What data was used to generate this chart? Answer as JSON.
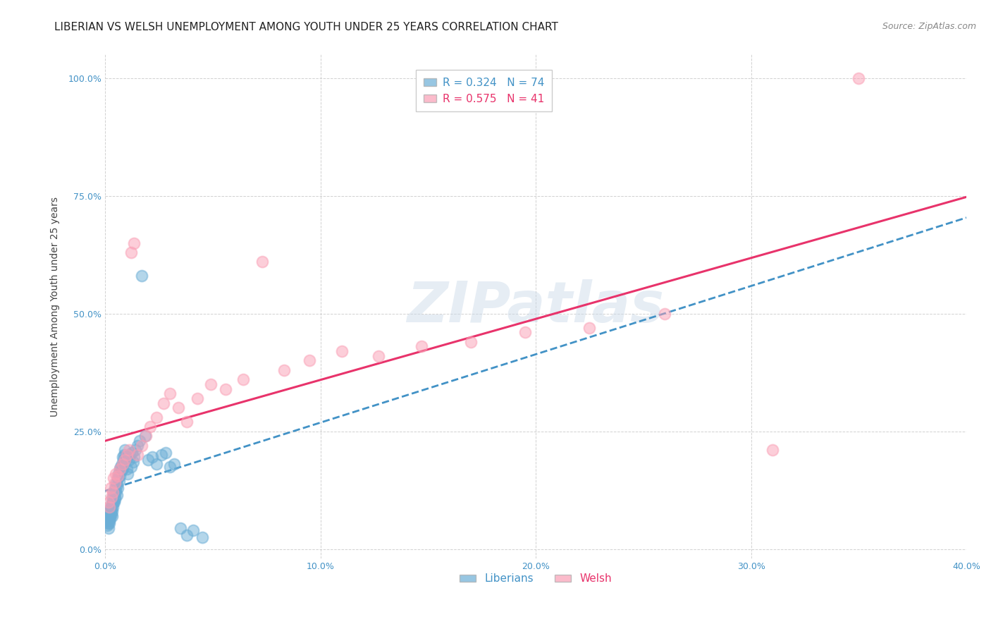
{
  "title": "LIBERIAN VS WELSH UNEMPLOYMENT AMONG YOUTH UNDER 25 YEARS CORRELATION CHART",
  "source": "Source: ZipAtlas.com",
  "ylabel": "Unemployment Among Youth under 25 years",
  "xlabel_ticks": [
    "0.0%",
    "10.0%",
    "20.0%",
    "30.0%",
    "40.0%"
  ],
  "ylabel_ticks": [
    "0.0%",
    "25.0%",
    "50.0%",
    "75.0%",
    "100.0%"
  ],
  "xlim": [
    0.0,
    0.4
  ],
  "ylim": [
    -0.02,
    1.05
  ],
  "liberian_color": "#6baed6",
  "welsh_color": "#fa9fb5",
  "liberian_line_color": "#4292c6",
  "welsh_line_color": "#e8336b",
  "liberian_label": "Liberians",
  "welsh_label": "Welsh",
  "liberian_R": 0.324,
  "liberian_N": 74,
  "welsh_R": 0.575,
  "welsh_N": 41,
  "liberian_x": [
    0.001,
    0.0012,
    0.0014,
    0.0015,
    0.0016,
    0.0017,
    0.0018,
    0.0019,
    0.002,
    0.0021,
    0.0022,
    0.0023,
    0.0024,
    0.0025,
    0.0026,
    0.0028,
    0.003,
    0.0031,
    0.0032,
    0.0033,
    0.0034,
    0.0035,
    0.0036,
    0.0038,
    0.004,
    0.0042,
    0.0044,
    0.0045,
    0.0046,
    0.0048,
    0.005,
    0.0052,
    0.0054,
    0.0056,
    0.0058,
    0.006,
    0.0062,
    0.0065,
    0.0068,
    0.007,
    0.0073,
    0.0075,
    0.0078,
    0.008,
    0.0082,
    0.0085,
    0.0088,
    0.009,
    0.0093,
    0.0095,
    0.01,
    0.0105,
    0.011,
    0.0115,
    0.012,
    0.0125,
    0.013,
    0.0135,
    0.014,
    0.015,
    0.016,
    0.017,
    0.0185,
    0.02,
    0.022,
    0.024,
    0.026,
    0.028,
    0.03,
    0.032,
    0.035,
    0.038,
    0.041,
    0.045
  ],
  "liberian_y": [
    0.05,
    0.06,
    0.055,
    0.07,
    0.045,
    0.065,
    0.055,
    0.08,
    0.06,
    0.075,
    0.07,
    0.085,
    0.065,
    0.08,
    0.09,
    0.075,
    0.085,
    0.1,
    0.07,
    0.095,
    0.08,
    0.11,
    0.09,
    0.1,
    0.12,
    0.1,
    0.11,
    0.13,
    0.105,
    0.125,
    0.12,
    0.14,
    0.115,
    0.135,
    0.15,
    0.13,
    0.16,
    0.145,
    0.17,
    0.155,
    0.175,
    0.165,
    0.18,
    0.195,
    0.17,
    0.19,
    0.2,
    0.185,
    0.21,
    0.195,
    0.17,
    0.16,
    0.19,
    0.2,
    0.175,
    0.205,
    0.185,
    0.195,
    0.21,
    0.22,
    0.23,
    0.58,
    0.24,
    0.19,
    0.195,
    0.18,
    0.2,
    0.205,
    0.175,
    0.18,
    0.045,
    0.03,
    0.04,
    0.025
  ],
  "welsh_x": [
    0.0015,
    0.002,
    0.0025,
    0.003,
    0.0035,
    0.004,
    0.0045,
    0.005,
    0.006,
    0.007,
    0.008,
    0.009,
    0.01,
    0.011,
    0.012,
    0.0135,
    0.015,
    0.017,
    0.019,
    0.021,
    0.024,
    0.027,
    0.03,
    0.034,
    0.038,
    0.043,
    0.049,
    0.056,
    0.064,
    0.073,
    0.083,
    0.095,
    0.11,
    0.127,
    0.147,
    0.17,
    0.195,
    0.225,
    0.26,
    0.31,
    0.35
  ],
  "welsh_y": [
    0.1,
    0.09,
    0.13,
    0.11,
    0.12,
    0.15,
    0.14,
    0.16,
    0.155,
    0.17,
    0.18,
    0.19,
    0.2,
    0.21,
    0.63,
    0.65,
    0.2,
    0.22,
    0.24,
    0.26,
    0.28,
    0.31,
    0.33,
    0.3,
    0.27,
    0.32,
    0.35,
    0.34,
    0.36,
    0.61,
    0.38,
    0.4,
    0.42,
    0.41,
    0.43,
    0.44,
    0.46,
    0.47,
    0.5,
    0.21,
    1.0
  ],
  "liberian_line_x": [
    0.0,
    0.4
  ],
  "welsh_line_x": [
    0.0,
    0.4
  ],
  "background_color": "#ffffff",
  "grid_color": "#cccccc",
  "title_fontsize": 11,
  "axis_label_fontsize": 10,
  "tick_fontsize": 9,
  "legend_fontsize": 11,
  "source_fontsize": 9,
  "watermark_text": "ZIPatlas",
  "watermark_color": "#c8d8e8",
  "watermark_alpha": 0.45
}
